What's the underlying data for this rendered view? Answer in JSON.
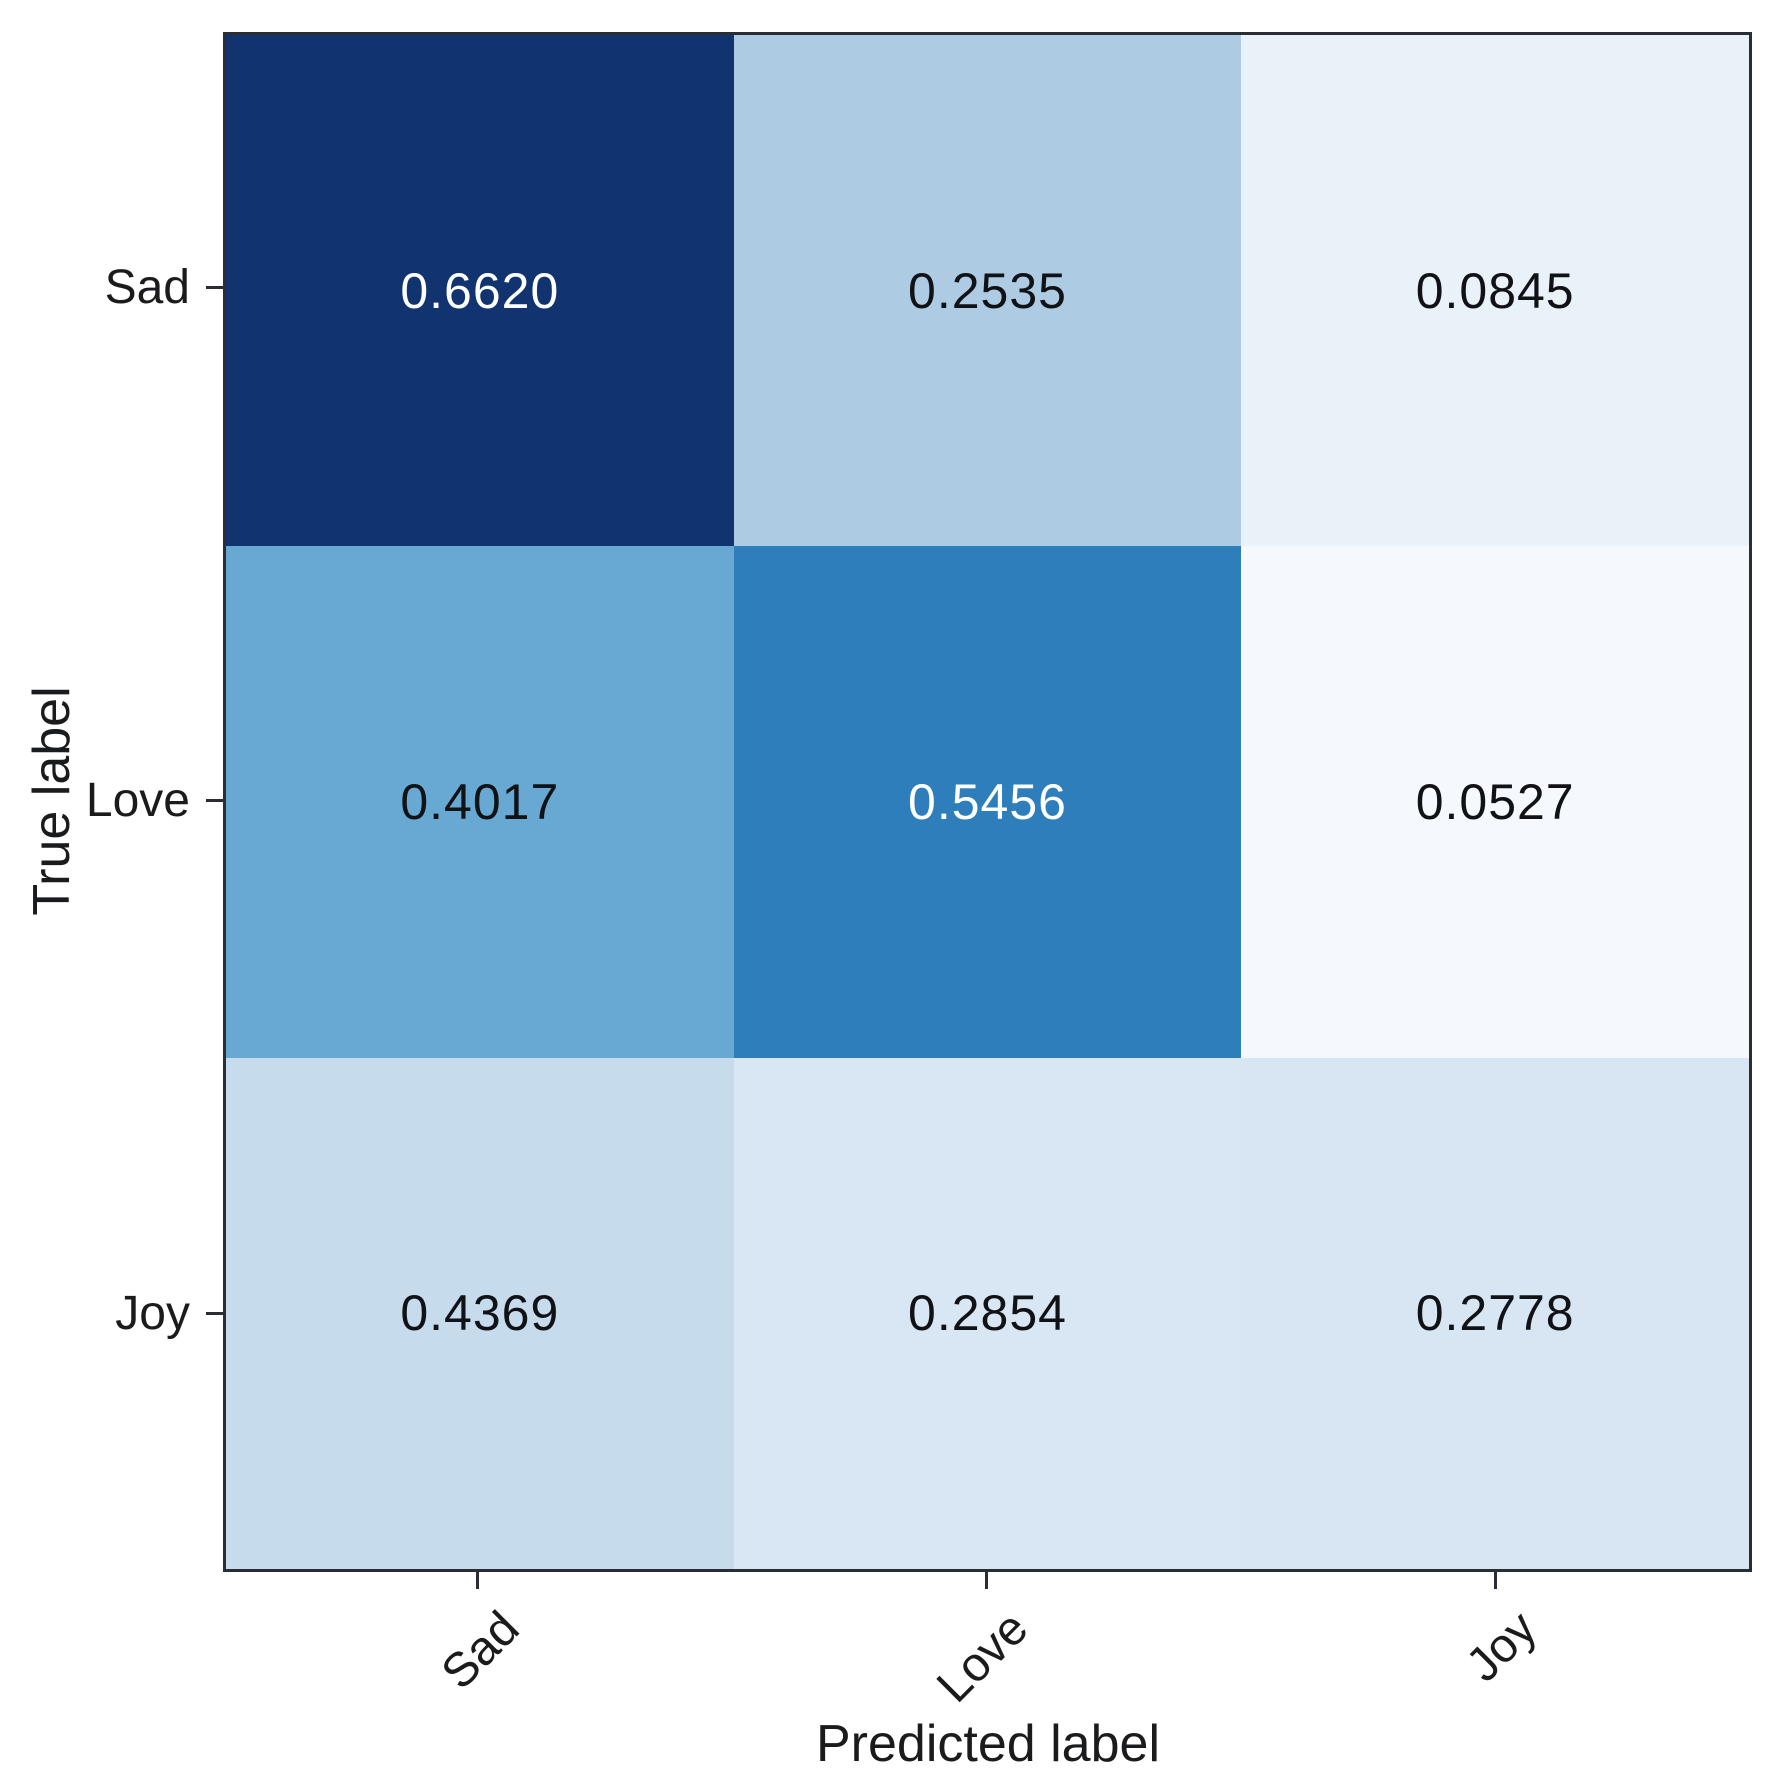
{
  "chart_data": {
    "type": "heatmap",
    "subtype": "confusion_matrix",
    "title": "",
    "xlabel": "Predicted label",
    "ylabel": "True label",
    "x_categories": [
      "Sad",
      "Love",
      "Joy"
    ],
    "y_categories": [
      "Sad",
      "Love",
      "Joy"
    ],
    "colormap": "Blues",
    "grid": "off",
    "legend": "none",
    "matrix": [
      [
        0.662,
        0.2535,
        0.0845
      ],
      [
        0.4017,
        0.5456,
        0.0527
      ],
      [
        0.4369,
        0.2854,
        0.2778
      ]
    ],
    "cells": [
      {
        "row": "Sad",
        "col": "Sad",
        "value": 0.662,
        "label": "0.6620",
        "bg": "#11336f",
        "fg": "#ffffff"
      },
      {
        "row": "Sad",
        "col": "Love",
        "value": 0.2535,
        "label": "0.2535",
        "bg": "#adcce3",
        "fg": "#101216"
      },
      {
        "row": "Sad",
        "col": "Joy",
        "value": 0.0845,
        "label": "0.0845",
        "bg": "#e9f1f9",
        "fg": "#101216"
      },
      {
        "row": "Love",
        "col": "Sad",
        "value": 0.4017,
        "label": "0.4017",
        "bg": "#67a9d3",
        "fg": "#101216"
      },
      {
        "row": "Love",
        "col": "Love",
        "value": 0.5456,
        "label": "0.5456",
        "bg": "#2e7ebc",
        "fg": "#ffffff"
      },
      {
        "row": "Love",
        "col": "Joy",
        "value": 0.0527,
        "label": "0.0527",
        "bg": "#f5f9fd",
        "fg": "#101216"
      },
      {
        "row": "Joy",
        "col": "Sad",
        "value": 0.4369,
        "label": "0.4369",
        "bg": "#c6dbec",
        "fg": "#101216"
      },
      {
        "row": "Joy",
        "col": "Love",
        "value": 0.2854,
        "label": "0.2854",
        "bg": "#d9e6f3",
        "fg": "#101216"
      },
      {
        "row": "Joy",
        "col": "Joy",
        "value": 0.2778,
        "label": "0.2778",
        "bg": "#d8e5f3",
        "fg": "#101216"
      }
    ],
    "spine_color": "#2a2d33"
  }
}
